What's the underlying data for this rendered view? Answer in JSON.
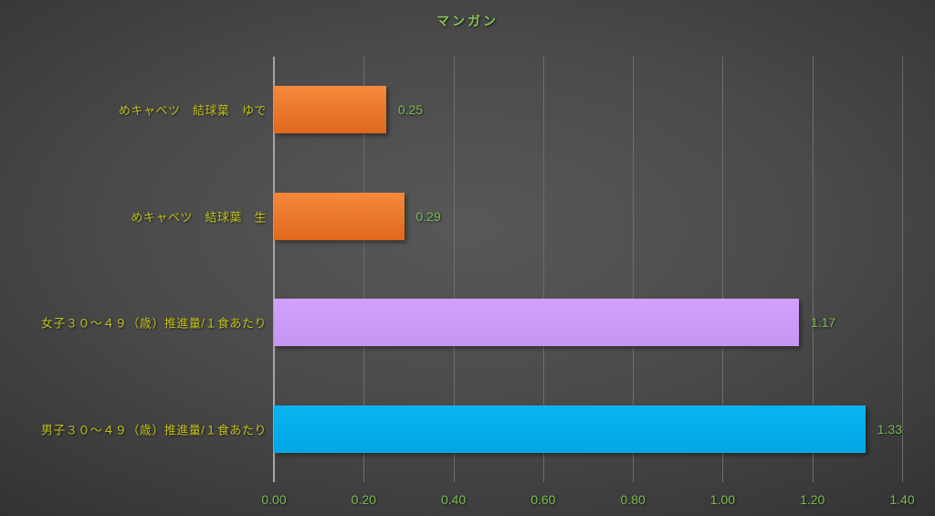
{
  "chart_data": {
    "type": "bar",
    "orientation": "horizontal",
    "title": "マンガン",
    "categories": [
      "めキャベツ　結球葉　ゆで",
      "めキャベツ　結球葉　生",
      "女子３０～４９（歳）推進量/１食あたり",
      "男子３０～４９（歳）推進量/１食あたり"
    ],
    "values": [
      0.25,
      0.29,
      1.17,
      1.33
    ],
    "xlim": [
      0,
      1.4
    ],
    "x_ticks": [
      "0.00",
      "0.20",
      "0.40",
      "0.60",
      "0.80",
      "1.00",
      "1.20",
      "1.40"
    ],
    "grid": true,
    "legend": "none",
    "bars": [
      {
        "category": "めキャベツ　結球葉　ゆで",
        "value": 0.25,
        "label": "0.25",
        "color": "#ED7D31",
        "fill_top": "#F5893C",
        "fill_bottom": "#E0681C"
      },
      {
        "category": "めキャベツ　結球葉　生",
        "value": 0.29,
        "label": "0.29",
        "color": "#ED7D31",
        "fill_top": "#F5893C",
        "fill_bottom": "#E0681C"
      },
      {
        "category": "女子３０～４９（歳）推進量/１食あたり",
        "value": 1.17,
        "label": "1.17",
        "color": "#CC99FF",
        "fill_top": "#D0A1FA",
        "fill_bottom": "#C695F0"
      },
      {
        "category": "男子３０～４９（歳）推進量/１食あたり",
        "value": 1.33,
        "label": "1.33",
        "color": "#00B0F0",
        "fill_top": "#09B3F2",
        "fill_bottom": "#00A6E2"
      }
    ],
    "colors": {
      "background_center": "#585858",
      "background_edge": "#272727",
      "title_text": "#86C157",
      "category_text": "#BFBF1E",
      "value_text": "#79BC4E",
      "tick_text": "#79BC4E",
      "gridline": "#6d6d6d",
      "axis_line": "#a6a6a6"
    }
  }
}
